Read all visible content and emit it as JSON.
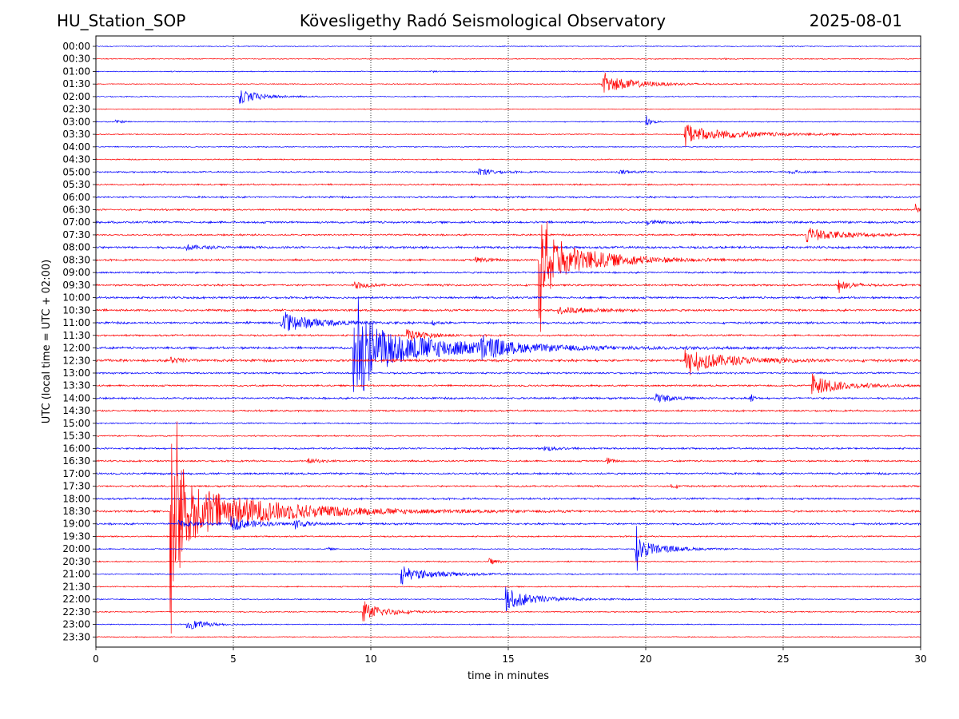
{
  "header": {
    "station": "HU_Station_SOP",
    "observatory": "Kövesligethy Radó Seismological Observatory",
    "date": "2025-08-01"
  },
  "chart_data": {
    "type": "line",
    "title": "Kövesligethy Radó Seismological Observatory",
    "xlabel": "time in minutes",
    "ylabel": "UTC (local time = UTC + 02:00)",
    "xlim": [
      0,
      30
    ],
    "xticks": [
      0,
      5,
      10,
      15,
      20,
      25,
      30
    ],
    "grid": "vertical dotted",
    "row_labels": [
      "00:00",
      "00:30",
      "01:00",
      "01:30",
      "02:00",
      "02:30",
      "03:00",
      "03:30",
      "04:00",
      "04:30",
      "05:00",
      "05:30",
      "06:00",
      "06:30",
      "07:00",
      "07:30",
      "08:00",
      "08:30",
      "09:00",
      "09:30",
      "10:00",
      "10:30",
      "11:00",
      "11:30",
      "12:00",
      "12:30",
      "13:00",
      "13:30",
      "14:00",
      "14:30",
      "15:00",
      "15:30",
      "16:00",
      "16:30",
      "17:00",
      "17:30",
      "18:00",
      "18:30",
      "19:00",
      "19:30",
      "20:00",
      "20:30",
      "21:00",
      "21:30",
      "22:00",
      "22:30",
      "23:00",
      "23:30"
    ],
    "colors": [
      "#0000ff",
      "#ff0000"
    ],
    "noise_levels": [
      0.5,
      0.5,
      0.5,
      0.5,
      0.5,
      0.4,
      0.5,
      0.5,
      0.5,
      0.6,
      0.8,
      0.8,
      0.9,
      0.9,
      1.1,
      0.9,
      1.2,
      1.0,
      0.9,
      1.0,
      1.1,
      1.1,
      1.1,
      0.9,
      1.2,
      1.3,
      0.9,
      0.9,
      1.0,
      0.9,
      0.7,
      0.7,
      0.9,
      0.9,
      1.0,
      0.9,
      1.0,
      1.1,
      1.0,
      0.7,
      0.6,
      0.6,
      0.6,
      0.6,
      0.6,
      0.6,
      0.5,
      0.5
    ],
    "events": [
      {
        "row": 1,
        "start": 22.6,
        "amp": 1.2,
        "dur": 0.7,
        "up": 0
      },
      {
        "row": 2,
        "start": 12.2,
        "amp": 1.0,
        "dur": 0.5,
        "up": 0
      },
      {
        "row": 3,
        "start": 18.4,
        "amp": 12,
        "dur": 2.6,
        "up": 12
      },
      {
        "row": 4,
        "start": 5.2,
        "amp": 10,
        "dur": 1.6,
        "up": 18
      },
      {
        "row": 6,
        "start": 0.7,
        "amp": 2.0,
        "dur": 0.7,
        "up": 0
      },
      {
        "row": 6,
        "start": 20.0,
        "amp": 6,
        "dur": 0.5,
        "up": 10
      },
      {
        "row": 7,
        "start": 21.4,
        "amp": 10,
        "dur": 4.5,
        "up": 9
      },
      {
        "row": 10,
        "start": 13.9,
        "amp": 5,
        "dur": 1.2,
        "up": 8
      },
      {
        "row": 10,
        "start": 19.0,
        "amp": 3,
        "dur": 1.0,
        "up": 0
      },
      {
        "row": 10,
        "start": 25.2,
        "amp": 3,
        "dur": 0.8,
        "up": 0
      },
      {
        "row": 13,
        "start": 29.8,
        "amp": 8,
        "dur": 0.2,
        "up": 10
      },
      {
        "row": 14,
        "start": 20.0,
        "amp": 3,
        "dur": 0.8,
        "up": 0
      },
      {
        "row": 15,
        "start": 25.8,
        "amp": 8,
        "dur": 3.2,
        "up": 6
      },
      {
        "row": 16,
        "start": 3.3,
        "amp": 3,
        "dur": 1.5,
        "up": 0
      },
      {
        "row": 17,
        "start": 16.1,
        "amp": 32,
        "dur": 4.0,
        "up": 88
      },
      {
        "row": 17,
        "start": 13.8,
        "amp": 3,
        "dur": 1.4,
        "up": 0
      },
      {
        "row": 19,
        "start": 9.4,
        "amp": 5,
        "dur": 1.0,
        "up": 6
      },
      {
        "row": 19,
        "start": 27.0,
        "amp": 7,
        "dur": 1.0,
        "up": 7
      },
      {
        "row": 21,
        "start": 16.8,
        "amp": 4,
        "dur": 3.0,
        "up": 0
      },
      {
        "row": 22,
        "start": 6.7,
        "amp": 14,
        "dur": 2.5,
        "up": 14
      },
      {
        "row": 22,
        "start": 12.2,
        "amp": 3,
        "dur": 0.6,
        "up": 0
      },
      {
        "row": 23,
        "start": 11.3,
        "amp": 8,
        "dur": 1.5,
        "up": 10
      },
      {
        "row": 24,
        "start": 9.35,
        "amp": 28,
        "dur": 7.0,
        "up": 84
      },
      {
        "row": 24,
        "start": 14.0,
        "amp": 12,
        "dur": 1.5,
        "up": 0
      },
      {
        "row": 25,
        "start": 21.4,
        "amp": 14,
        "dur": 3.5,
        "up": 26
      },
      {
        "row": 25,
        "start": 2.7,
        "amp": 4,
        "dur": 1.0,
        "up": 0
      },
      {
        "row": 27,
        "start": 26.0,
        "amp": 12,
        "dur": 2.5,
        "up": 16
      },
      {
        "row": 28,
        "start": 20.3,
        "amp": 7,
        "dur": 1.2,
        "up": 8
      },
      {
        "row": 28,
        "start": 23.8,
        "amp": 9,
        "dur": 0.2,
        "up": 90
      },
      {
        "row": 32,
        "start": 16.3,
        "amp": 3,
        "dur": 1.3,
        "up": 0
      },
      {
        "row": 33,
        "start": 7.7,
        "amp": 3,
        "dur": 1.0,
        "up": 0
      },
      {
        "row": 33,
        "start": 18.6,
        "amp": 4,
        "dur": 0.5,
        "up": 0
      },
      {
        "row": 35,
        "start": 20.9,
        "amp": 3,
        "dur": 0.5,
        "up": 0
      },
      {
        "row": 37,
        "start": 2.7,
        "amp": 40,
        "dur": 6.5,
        "up": 160
      },
      {
        "row": 38,
        "start": 4.9,
        "amp": 8,
        "dur": 2.0,
        "up": 0
      },
      {
        "row": 38,
        "start": 7.2,
        "amp": 7,
        "dur": 0.8,
        "up": 0
      },
      {
        "row": 38,
        "start": 3.0,
        "amp": 4,
        "dur": 1.5,
        "up": 0
      },
      {
        "row": 40,
        "start": 19.6,
        "amp": 14,
        "dur": 2.0,
        "up": 40
      },
      {
        "row": 40,
        "start": 8.4,
        "amp": 3,
        "dur": 0.3,
        "up": 0
      },
      {
        "row": 41,
        "start": 14.3,
        "amp": 5,
        "dur": 0.6,
        "up": 0
      },
      {
        "row": 42,
        "start": 11.1,
        "amp": 8,
        "dur": 3.0,
        "up": 16
      },
      {
        "row": 44,
        "start": 14.9,
        "amp": 12,
        "dur": 2.5,
        "up": 14
      },
      {
        "row": 45,
        "start": 9.7,
        "amp": 12,
        "dur": 1.8,
        "up": 12
      },
      {
        "row": 46,
        "start": 3.3,
        "amp": 7,
        "dur": 1.5,
        "up": 0
      }
    ]
  }
}
